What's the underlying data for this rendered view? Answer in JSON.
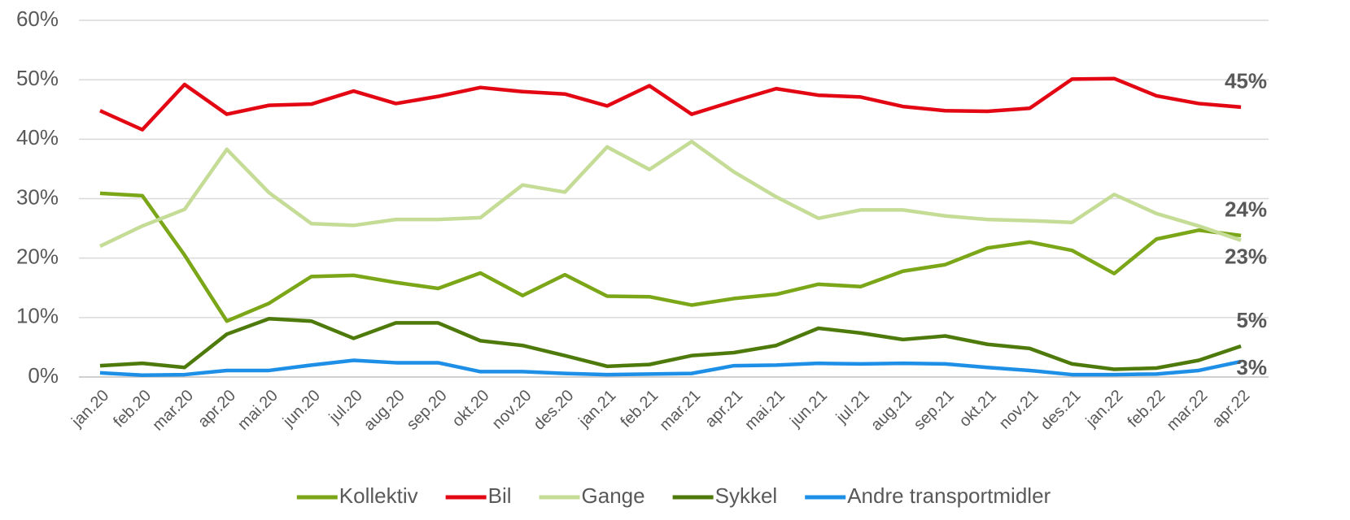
{
  "chart_data": {
    "type": "line",
    "categories": [
      "jan.20",
      "feb.20",
      "mar.20",
      "apr.20",
      "mai.20",
      "jun.20",
      "jul.20",
      "aug.20",
      "sep.20",
      "okt.20",
      "nov.20",
      "des.20",
      "jan.21",
      "feb.21",
      "mar.21",
      "apr.21",
      "mai.21",
      "jun.21",
      "jul.21",
      "aug.21",
      "sep.21",
      "okt.21",
      "nov.21",
      "des.21",
      "jan.22",
      "feb.22",
      "mar.22",
      "apr.22"
    ],
    "series": [
      {
        "name": "Kollektiv",
        "color": "#7aa618",
        "values": [
          30.9,
          30.5,
          20.5,
          9.4,
          12.4,
          16.9,
          17.1,
          15.9,
          14.9,
          17.5,
          13.7,
          17.2,
          13.6,
          13.5,
          12.1,
          13.2,
          13.9,
          15.6,
          15.2,
          17.8,
          18.9,
          21.7,
          22.7,
          21.3,
          17.4,
          23.2,
          24.7,
          23.8
        ],
        "value_labels": [
          null,
          null,
          null,
          null,
          null,
          null,
          null,
          null,
          null,
          null,
          null,
          null,
          null,
          null,
          null,
          null,
          null,
          null,
          null,
          null,
          null,
          null,
          null,
          null,
          null,
          null,
          null,
          "24%"
        ]
      },
      {
        "name": "Bil",
        "color": "#e30613",
        "values": [
          44.8,
          41.6,
          49.2,
          44.2,
          45.7,
          45.9,
          48.1,
          46.0,
          47.2,
          48.7,
          48.0,
          47.6,
          45.6,
          49.0,
          44.2,
          46.4,
          48.5,
          47.4,
          47.1,
          45.5,
          44.8,
          44.7,
          45.2,
          50.1,
          50.2,
          47.3,
          46.0,
          45.4
        ],
        "value_labels": [
          null,
          null,
          null,
          null,
          null,
          null,
          null,
          null,
          null,
          null,
          null,
          null,
          null,
          null,
          null,
          null,
          null,
          null,
          null,
          null,
          null,
          null,
          null,
          null,
          null,
          null,
          null,
          "45%"
        ]
      },
      {
        "name": "Gange",
        "color": "#c5dc96",
        "values": [
          22.0,
          25.4,
          28.2,
          38.3,
          31.0,
          25.8,
          25.5,
          26.5,
          26.5,
          26.8,
          32.3,
          31.1,
          38.7,
          34.9,
          39.6,
          34.5,
          30.3,
          26.7,
          28.1,
          28.1,
          27.1,
          26.5,
          26.3,
          26.0,
          30.7,
          27.5,
          25.4,
          23.0
        ],
        "value_labels": [
          null,
          null,
          null,
          null,
          null,
          null,
          null,
          null,
          null,
          null,
          null,
          null,
          null,
          null,
          null,
          null,
          null,
          null,
          null,
          null,
          null,
          null,
          null,
          null,
          null,
          null,
          null,
          "23%"
        ]
      },
      {
        "name": "Sykkel",
        "color": "#4e7a0c",
        "values": [
          1.9,
          2.3,
          1.6,
          7.2,
          9.8,
          9.4,
          6.5,
          9.1,
          9.1,
          6.1,
          5.3,
          3.6,
          1.8,
          2.1,
          3.6,
          4.1,
          5.3,
          8.2,
          7.4,
          6.3,
          6.9,
          5.5,
          4.8,
          2.2,
          1.3,
          1.5,
          2.8,
          5.2
        ],
        "value_labels": [
          null,
          null,
          null,
          null,
          null,
          null,
          null,
          null,
          null,
          null,
          null,
          null,
          null,
          null,
          null,
          null,
          null,
          null,
          null,
          null,
          null,
          null,
          null,
          null,
          null,
          null,
          null,
          "5%"
        ]
      },
      {
        "name": "Andre transportmidler",
        "color": "#1e8fe6",
        "values": [
          0.7,
          0.3,
          0.4,
          1.1,
          1.1,
          2.0,
          2.8,
          2.4,
          2.4,
          0.9,
          0.9,
          0.6,
          0.4,
          0.5,
          0.6,
          1.9,
          2.0,
          2.3,
          2.2,
          2.3,
          2.2,
          1.6,
          1.1,
          0.4,
          0.4,
          0.5,
          1.1,
          2.6
        ],
        "value_labels": [
          null,
          null,
          null,
          null,
          null,
          null,
          null,
          null,
          null,
          null,
          null,
          null,
          null,
          null,
          null,
          null,
          null,
          null,
          null,
          null,
          null,
          null,
          null,
          null,
          null,
          null,
          null,
          "3%"
        ]
      }
    ],
    "ylim": [
      0,
      60
    ],
    "yticks": [
      {
        "value": 0,
        "label": "0%"
      },
      {
        "value": 10,
        "label": "10%"
      },
      {
        "value": 20,
        "label": "20%"
      },
      {
        "value": 30,
        "label": "30%"
      },
      {
        "value": 40,
        "label": "40%"
      },
      {
        "value": 50,
        "label": "50%"
      },
      {
        "value": 60,
        "label": "60%"
      }
    ],
    "grid": true,
    "legend": "bottom"
  }
}
